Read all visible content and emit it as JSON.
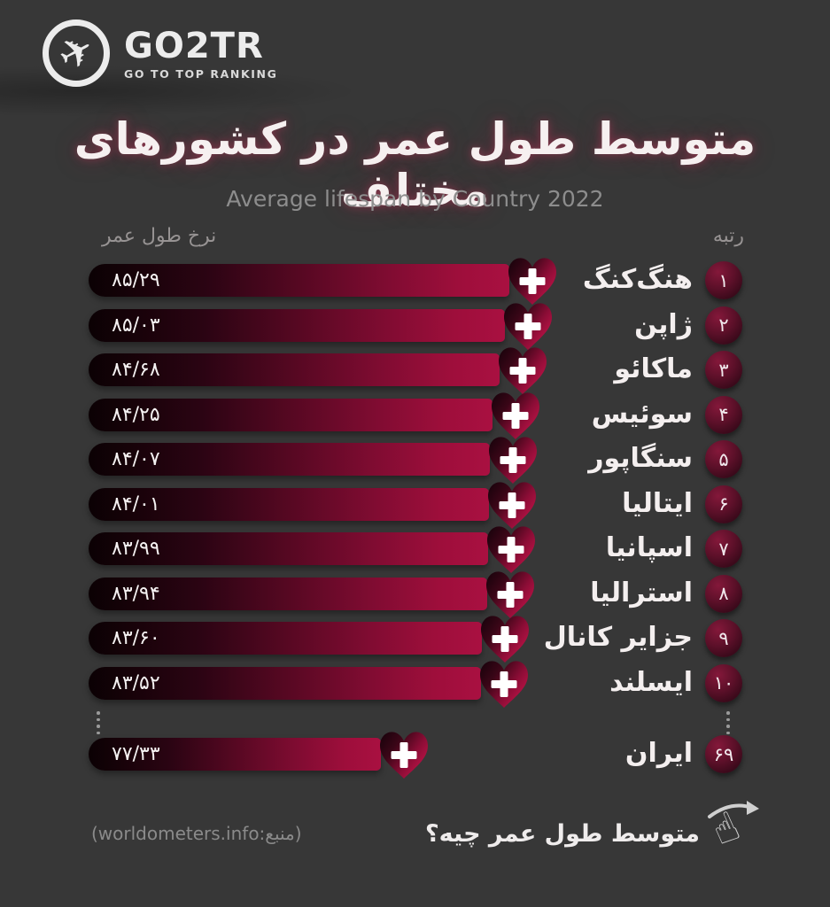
{
  "brand": {
    "name": "GO2TR",
    "tagline": "GO TO TOP RANKING"
  },
  "title_fa": "متوسط طول عمر در کشورهای مختلف",
  "subtitle_en": "Average lifespan by Country 2022",
  "columns": {
    "value_header_fa": "نرخ طول عمر",
    "rank_header_fa": "رتبه"
  },
  "chart_data": {
    "type": "bar",
    "orientation": "horizontal",
    "title": "متوسط طول عمر در کشورهای مختلف",
    "subtitle": "Average lifespan by Country 2022",
    "value_axis_label": "نرخ طول عمر",
    "rank_axis_label": "رتبه",
    "xlim": [
      77,
      86
    ],
    "gap_marker": "⋮",
    "gap_after_rank": 10,
    "rows": [
      {
        "rank": 1,
        "rank_fa": "۱",
        "country_fa": "هنگ‌کنگ",
        "value": 85.29,
        "value_fa": "۸۵/۲۹"
      },
      {
        "rank": 2,
        "rank_fa": "۲",
        "country_fa": "ژاپن",
        "value": 85.03,
        "value_fa": "۸۵/۰۳"
      },
      {
        "rank": 3,
        "rank_fa": "۳",
        "country_fa": "ماکائو",
        "value": 84.68,
        "value_fa": "۸۴/۶۸"
      },
      {
        "rank": 4,
        "rank_fa": "۴",
        "country_fa": "سوئیس",
        "value": 84.25,
        "value_fa": "۸۴/۲۵"
      },
      {
        "rank": 5,
        "rank_fa": "۵",
        "country_fa": "سنگاپور",
        "value": 84.07,
        "value_fa": "۸۴/۰۷"
      },
      {
        "rank": 6,
        "rank_fa": "۶",
        "country_fa": "ایتالیا",
        "value": 84.01,
        "value_fa": "۸۴/۰۱"
      },
      {
        "rank": 7,
        "rank_fa": "۷",
        "country_fa": "اسپانیا",
        "value": 83.99,
        "value_fa": "۸۳/۹۹"
      },
      {
        "rank": 8,
        "rank_fa": "۸",
        "country_fa": "استرالیا",
        "value": 83.94,
        "value_fa": "۸۳/۹۴"
      },
      {
        "rank": 9,
        "rank_fa": "۹",
        "country_fa": "جزایر کانال",
        "value": 83.6,
        "value_fa": "۸۳/۶۰"
      },
      {
        "rank": 10,
        "rank_fa": "۱۰",
        "country_fa": "ایسلند",
        "value": 83.52,
        "value_fa": "۸۳/۵۲"
      },
      {
        "rank": 69,
        "rank_fa": "۶۹",
        "country_fa": "ایران",
        "value": 77.33,
        "value_fa": "۷۷/۳۳",
        "after_gap": true
      }
    ]
  },
  "footer": {
    "source_text": "(worldometers.info:منبع)",
    "question_fa": "متوسط طول عمر چیه؟"
  },
  "colors": {
    "background": "#373737",
    "bar_dark": "#0b0104",
    "bar_crimson": "#a91041",
    "heart_bright": "#c11348",
    "badge_maroon": "#5c1029",
    "text_primary": "#f3eeee",
    "text_muted": "#8f8f8f"
  }
}
